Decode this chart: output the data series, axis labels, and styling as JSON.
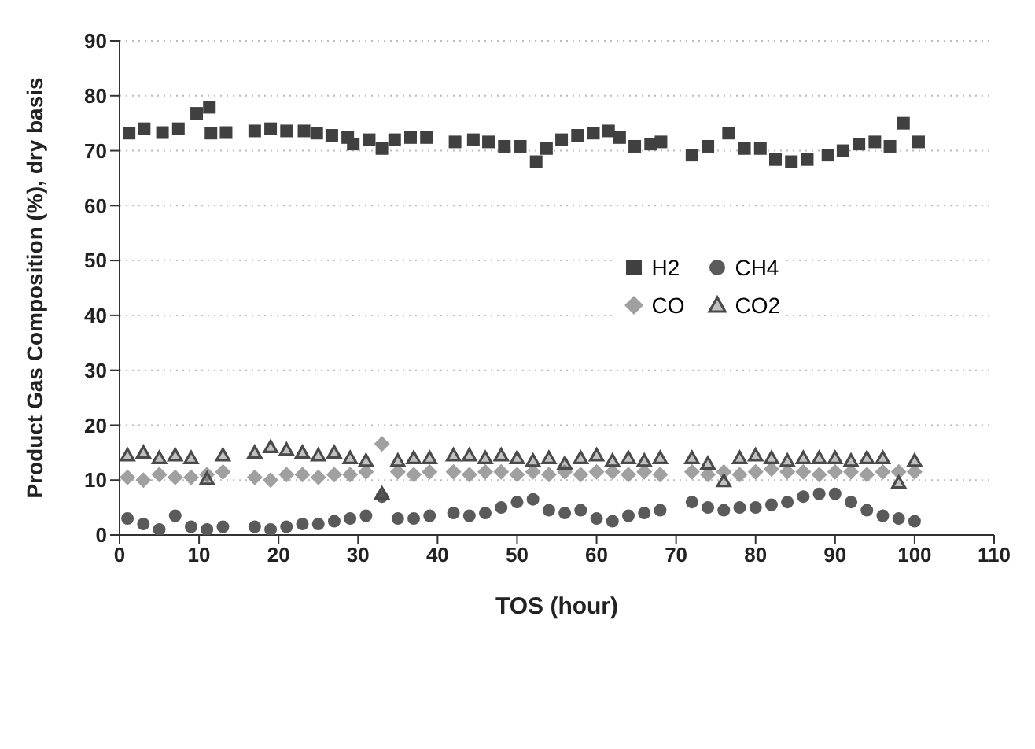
{
  "chart_data": {
    "type": "scatter",
    "xlabel": "TOS (hour)",
    "ylabel": "Product Gas Composition (%), dry basis",
    "xlim": [
      0,
      110
    ],
    "xticks": [
      0,
      10,
      20,
      30,
      40,
      50,
      60,
      70,
      80,
      90,
      100,
      110
    ],
    "ylim": [
      0,
      90
    ],
    "yticks": [
      0,
      10,
      20,
      30,
      40,
      50,
      60,
      70,
      80,
      90
    ],
    "grid": "y",
    "legend": "right",
    "x": [
      1,
      3,
      5,
      7,
      9,
      11,
      13,
      17,
      19,
      21,
      23,
      25,
      27,
      29,
      31,
      33,
      35,
      37,
      39,
      42,
      44,
      46,
      48,
      50,
      52,
      54,
      56,
      58,
      60,
      62,
      64,
      66,
      68,
      72,
      74,
      76,
      78,
      80,
      82,
      84,
      86,
      88,
      90,
      92,
      94,
      96,
      98,
      100
    ],
    "series": [
      {
        "name": "H2",
        "color": "#404040",
        "marker": "square",
        "x": [
          1.2,
          3.1,
          5.4,
          7.4,
          9.7,
          11.3,
          11.5,
          13.4,
          17,
          19,
          21,
          23.2,
          24.8,
          26.7,
          28.7,
          29.4,
          31.4,
          33,
          34.6,
          36.6,
          38.6,
          42.2,
          44.5,
          46.4,
          48.4,
          50.4,
          52.4,
          53.7,
          55.6,
          57.6,
          59.6,
          61.5,
          62.9,
          64.8,
          66.8,
          68.1,
          72,
          74,
          76.6,
          78.6,
          80.6,
          82.5,
          84.5,
          86.5,
          89.1,
          91,
          93,
          95,
          96.9,
          98.6,
          100.5
        ],
        "values": [
          73.2,
          74,
          73.3,
          74,
          76.8,
          77.9,
          73.2,
          73.3,
          73.6,
          74,
          73.6,
          73.6,
          73.2,
          72.8,
          72.4,
          71.2,
          72,
          70.4,
          72,
          72.4,
          72.4,
          71.6,
          72,
          71.6,
          70.8,
          70.8,
          68,
          70.4,
          72,
          72.8,
          73.2,
          73.6,
          72.4,
          70.8,
          71.2,
          71.6,
          69.2,
          70.8,
          73.2,
          70.4,
          70.4,
          68.4,
          68,
          68.4,
          69.2,
          70,
          71.2,
          71.6,
          70.8,
          75,
          71.6
        ]
      },
      {
        "name": "CH4",
        "color": "#5a5a5a",
        "marker": "circle",
        "values": [
          3,
          2,
          1,
          3.5,
          1.5,
          1,
          1.5,
          1.5,
          1,
          1.5,
          2,
          2,
          2.5,
          3,
          3.5,
          7,
          3,
          3,
          3.5,
          4,
          3.5,
          4,
          5,
          6,
          6.5,
          4.5,
          4,
          4.5,
          3,
          2.5,
          3.5,
          4,
          4.5,
          6,
          5,
          4.5,
          5,
          5,
          5.5,
          6,
          7,
          7.5,
          7.5,
          6,
          4.5,
          3.5,
          3,
          2.5
        ]
      },
      {
        "name": "CO",
        "color": "#a0a0a0",
        "marker": "diamond",
        "values": [
          10.5,
          10,
          11,
          10.5,
          10.5,
          11,
          11.5,
          10.5,
          10,
          11,
          11,
          10.5,
          11,
          11,
          11.5,
          16.6,
          11.5,
          11,
          11.5,
          11.5,
          11,
          11.5,
          11.5,
          11,
          11.5,
          11,
          11.5,
          11,
          11.5,
          11.5,
          11,
          11.5,
          11,
          11.5,
          11,
          11.5,
          11,
          11.5,
          12,
          11.5,
          11.5,
          11,
          11.5,
          11.5,
          11,
          11.5,
          11.5,
          11.5
        ]
      },
      {
        "name": "CO2",
        "color": "#4a4a4a",
        "marker": "triangle",
        "values": [
          14.5,
          15,
          14,
          14.5,
          14,
          10.2,
          14.5,
          15,
          16,
          15.5,
          15,
          14.5,
          15,
          14,
          13.5,
          7.5,
          13.5,
          14,
          14,
          14.5,
          14.5,
          14,
          14.5,
          14,
          13.5,
          14,
          13,
          14,
          14.5,
          13.5,
          14,
          13.5,
          14,
          14,
          13,
          9.8,
          14,
          14.5,
          14,
          13.5,
          14,
          14,
          14,
          13.5,
          14,
          14,
          9.5,
          13.5
        ]
      }
    ]
  }
}
